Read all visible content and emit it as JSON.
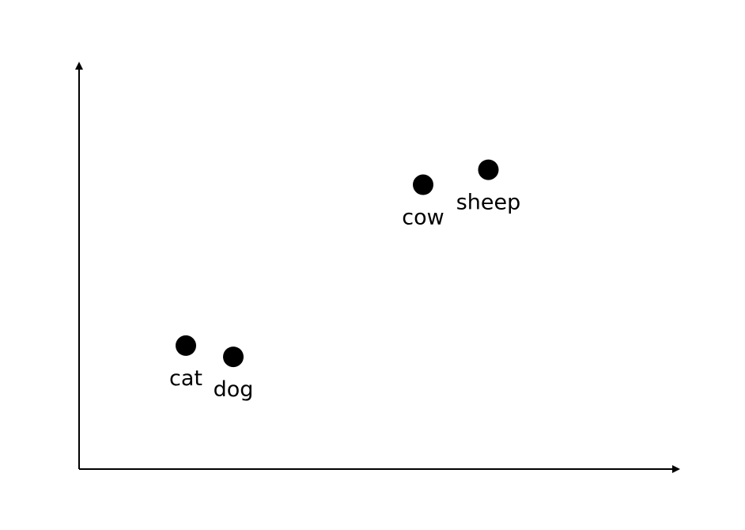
{
  "chart_data": {
    "type": "scatter",
    "title": "",
    "xlabel": "",
    "ylabel": "",
    "grid": false,
    "xlim": [
      0,
      10
    ],
    "ylim": [
      0,
      10
    ],
    "points": [
      {
        "label": "cat",
        "x": 1.8,
        "y": 3.3
      },
      {
        "label": "dog",
        "x": 2.6,
        "y": 3.0
      },
      {
        "label": "cow",
        "x": 5.8,
        "y": 7.6
      },
      {
        "label": "sheep",
        "x": 6.9,
        "y": 8.0
      }
    ]
  },
  "colors": {
    "point": "#000000",
    "axis": "#000000"
  }
}
